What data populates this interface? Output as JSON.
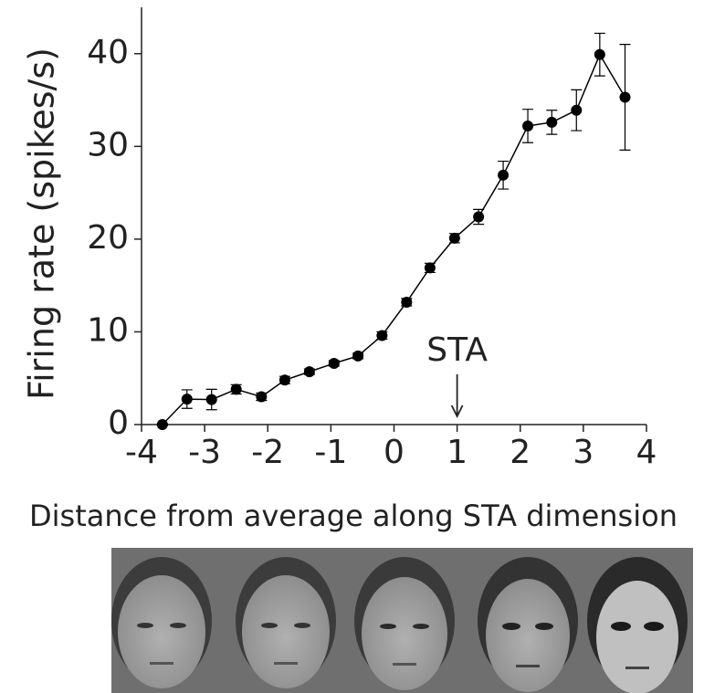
{
  "chart_data": {
    "type": "line",
    "x_label": "Distance from average along STA dimension",
    "y_label": "Firing rate (spikes/s)",
    "x": [
      -3.67,
      -3.28,
      -2.89,
      -2.5,
      -2.1,
      -1.73,
      -1.34,
      -0.95,
      -0.57,
      -0.19,
      0.2,
      0.57,
      0.96,
      1.34,
      1.73,
      2.12,
      2.5,
      2.89,
      3.26,
      3.66
    ],
    "values": [
      0,
      2.75,
      2.7,
      3.8,
      3.0,
      4.8,
      5.7,
      6.6,
      7.4,
      9.6,
      13.2,
      16.9,
      20.1,
      22.4,
      26.9,
      32.2,
      32.6,
      33.9,
      39.9,
      35.3
    ],
    "errors": [
      0.1,
      1.0,
      1.1,
      0.5,
      0.4,
      0.4,
      0.3,
      0.3,
      0.3,
      0.4,
      0.4,
      0.5,
      0.5,
      0.8,
      1.5,
      1.8,
      1.3,
      2.2,
      2.3,
      5.7
    ],
    "color": "#000000",
    "xlim": [
      -4,
      4
    ],
    "xticks": [
      -4,
      -3,
      -2,
      -1,
      0,
      1,
      2,
      3,
      4
    ],
    "ylim": [
      0,
      45
    ],
    "yticks": [
      0,
      10,
      20,
      30,
      40
    ],
    "annotation": {
      "text": "STA",
      "x": 1
    }
  }
}
